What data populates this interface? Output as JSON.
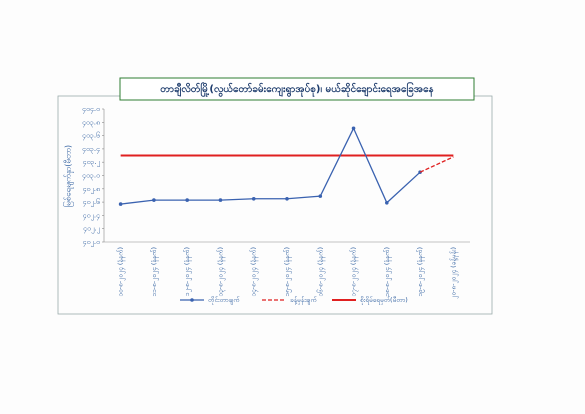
{
  "chart_data": {
    "type": "line",
    "title": "တာချီလိတ်မြို့(လွယ်တော်ခမ်းကျေးရွာအုပ်စု)၊ မယ်ဆိုင်ချောင်းရေအခြေအနေ",
    "y_label": "မြစ်ရေမျက်နှာ(မီတာ)",
    "categories": [
      "၁၀-၈-၂၀၂၄ (နံနက်)",
      "၁၁-၈-၂၀၂၄ (နံနက်)",
      "၁၂-၈-၂၀၂၄ (နံနက်)",
      "၁၃-၈-၂၀၂၄ (နံနက်)",
      "၁၄-၈-၂၀၂၄ (နံနက်)",
      "၁၅-၈-၂၀၂၄ (နံနက်)",
      "၁၆-၈-၂၀၂၄ (နံနက်)",
      "၁၇-၈-၂၀၂၄ (နံနက်)",
      "၁၈-၈-၂၀၂၄ (နံနက်)",
      "၁၉-၈-၂၀၂၄ (နံနက်)",
      "၂၀-၈-၂၀၂၄ (ခန့်မှန်း)"
    ],
    "series": [
      {
        "name": "တိုင်းတာချက်",
        "color": "#3a62b0",
        "style": "solid",
        "markers": true,
        "values": [
          402.57,
          402.63,
          402.63,
          402.63,
          402.65,
          402.65,
          402.69,
          403.71,
          402.59,
          403.05,
          null
        ]
      },
      {
        "name": "ခန့်မှန်းချက်",
        "color": "#e02020",
        "style": "dashed",
        "markers": false,
        "values": [
          null,
          null,
          null,
          null,
          null,
          null,
          null,
          null,
          null,
          403.05,
          403.28
        ]
      }
    ],
    "danger_level": {
      "name": "စိုးရိမ်ရေမှတ်(မီတာ)",
      "color": "#e02020",
      "value": 403.3
    },
    "ylim": [
      402.0,
      404.0
    ],
    "yticks": [
      {
        "value": 402.0,
        "label": "၄၀၂.၀"
      },
      {
        "value": 402.2,
        "label": "၄၀၂.၂"
      },
      {
        "value": 402.4,
        "label": "၄၀၂.၄"
      },
      {
        "value": 402.6,
        "label": "၄၀၂.၆"
      },
      {
        "value": 402.8,
        "label": "၄၀၂.၈"
      },
      {
        "value": 403.0,
        "label": "၄၀၃.၀"
      },
      {
        "value": 403.2,
        "label": "၄၀၃.၂"
      },
      {
        "value": 403.4,
        "label": "၄၀၃.၄"
      },
      {
        "value": 403.6,
        "label": "၄၀၃.၆"
      },
      {
        "value": 403.8,
        "label": "၄၀၃.၈"
      },
      {
        "value": 404.0,
        "label": "၄၀၄.၀"
      }
    ],
    "grid": false
  }
}
